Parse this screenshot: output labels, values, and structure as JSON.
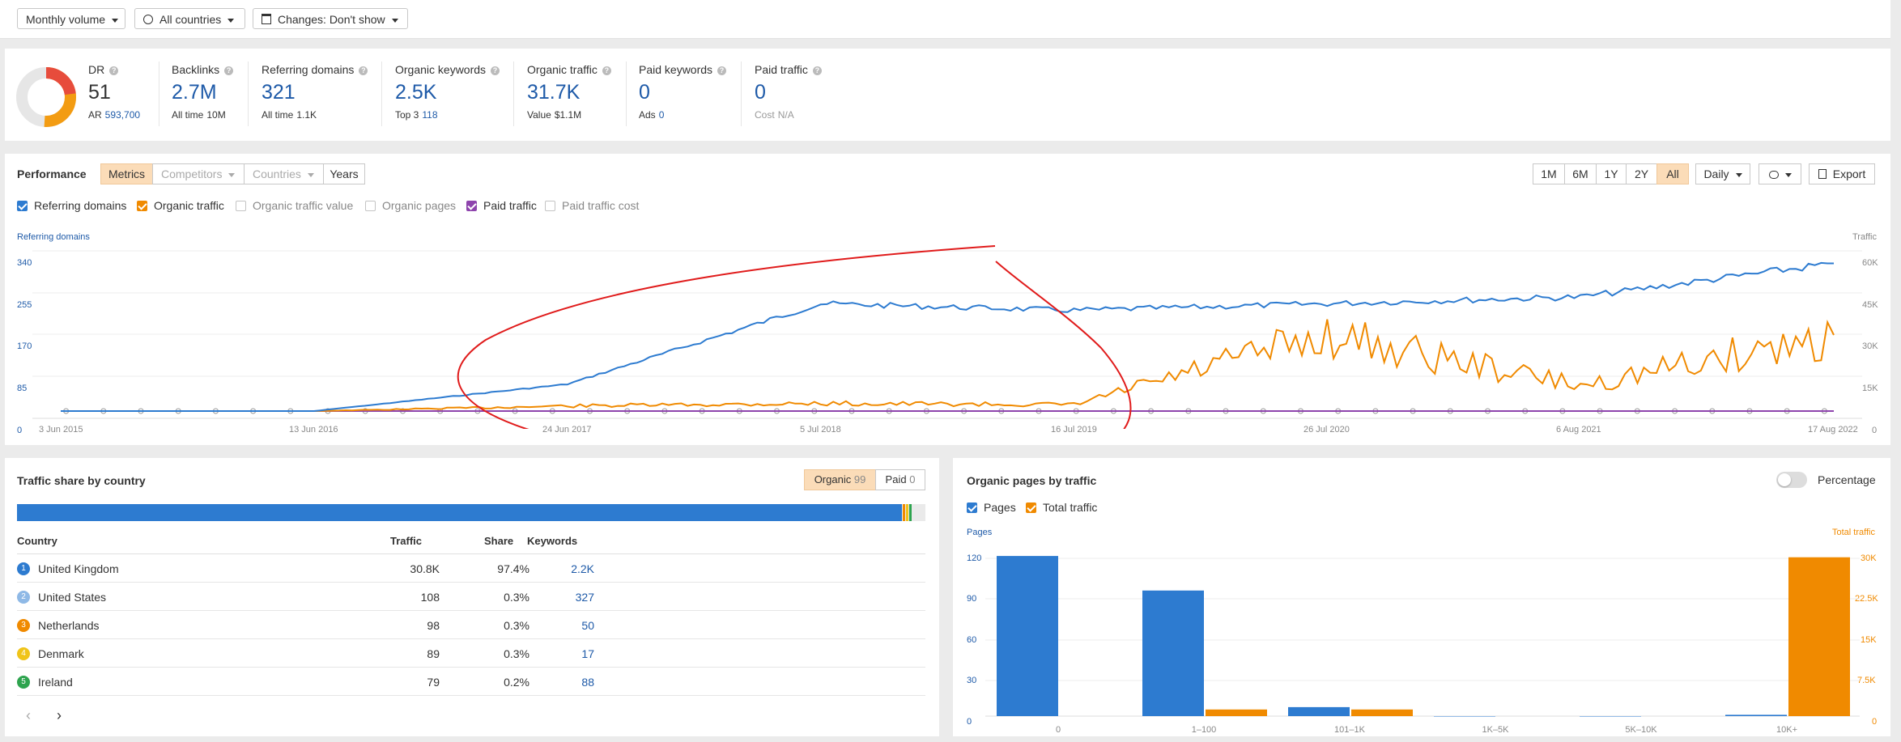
{
  "filters": {
    "volume": "Monthly volume",
    "countries": "All countries",
    "changes": "Changes: Don't show"
  },
  "metrics": {
    "dr": {
      "label": "DR",
      "value": "51",
      "sub_label": "AR",
      "sub_value": "593,700"
    },
    "backlinks": {
      "label": "Backlinks",
      "value": "2.7M",
      "sub_label": "All time",
      "sub_value": "10M"
    },
    "refdomains": {
      "label": "Referring domains",
      "value": "321",
      "sub_label": "All time",
      "sub_value": "1.1K"
    },
    "orgkw": {
      "label": "Organic keywords",
      "value": "2.5K",
      "sub_label": "Top 3",
      "sub_value": "118"
    },
    "orgtraffic": {
      "label": "Organic traffic",
      "value": "31.7K",
      "sub_label": "Value",
      "sub_value": "$1.1M"
    },
    "paidkw": {
      "label": "Paid keywords",
      "value": "0",
      "sub_label": "Ads",
      "sub_value": "0"
    },
    "paidtraffic": {
      "label": "Paid traffic",
      "value": "0",
      "sub_label": "Cost",
      "sub_value": "N/A"
    }
  },
  "performance": {
    "title": "Performance",
    "tabs": [
      "Metrics",
      "Competitors",
      "Countries",
      "Years"
    ],
    "ranges": [
      "1M",
      "6M",
      "1Y",
      "2Y",
      "All"
    ],
    "interval": "Daily",
    "export": "Export",
    "checkboxes": [
      {
        "label": "Referring domains",
        "checked": true,
        "color": "#2d7bd0"
      },
      {
        "label": "Organic traffic",
        "checked": true,
        "color": "#f08a00"
      },
      {
        "label": "Organic traffic value",
        "checked": false,
        "color": "#c4c4c4"
      },
      {
        "label": "Organic pages",
        "checked": false,
        "color": "#c4c4c4"
      },
      {
        "label": "Paid traffic",
        "checked": true,
        "color": "#8e44ad"
      },
      {
        "label": "Paid traffic cost",
        "checked": false,
        "color": "#c4c4c4"
      }
    ],
    "left_axis_title": "Referring domains",
    "right_axis_title": "Traffic",
    "left_ticks": [
      "340",
      "255",
      "170",
      "85",
      "0"
    ],
    "right_ticks": [
      "60K",
      "45K",
      "30K",
      "15K",
      "0"
    ],
    "x_ticks": [
      "3 Jun 2015",
      "13 Jun 2016",
      "24 Jun 2017",
      "5 Jul 2018",
      "16 Jul 2019",
      "26 Jul 2020",
      "6 Aug 2021",
      "17 Aug 2022"
    ]
  },
  "chart_data": [
    {
      "type": "line",
      "title": "Performance",
      "x": [
        "3 Jun 2015",
        "13 Jun 2016",
        "24 Jun 2017",
        "5 Jul 2018",
        "16 Jul 2019",
        "26 Jul 2020",
        "6 Aug 2021",
        "17 Aug 2022"
      ],
      "series": [
        {
          "name": "Referring domains",
          "axis": "left",
          "color": "#2d7bd0",
          "values": [
            0,
            0,
            60,
            240,
            225,
            240,
            255,
            330
          ]
        },
        {
          "name": "Organic traffic",
          "axis": "right",
          "color": "#f08a00",
          "values": [
            0,
            0,
            2000,
            3000,
            2500,
            30000,
            10000,
            30000
          ]
        },
        {
          "name": "Paid traffic",
          "axis": "right",
          "color": "#8e44ad",
          "values": [
            0,
            0,
            0,
            0,
            0,
            0,
            0,
            0
          ]
        }
      ],
      "ylim_left": [
        0,
        340
      ],
      "ylim_right": [
        0,
        60000
      ]
    },
    {
      "type": "bar",
      "title": "Organic pages by traffic",
      "categories": [
        "0",
        "1–100",
        "101–1K",
        "1K–5K",
        "5K–10K",
        "10K+"
      ],
      "series": [
        {
          "name": "Pages",
          "axis": "left",
          "color": "#2d7bd0",
          "values": [
            125,
            98,
            7,
            0,
            0,
            1
          ]
        },
        {
          "name": "Total traffic",
          "axis": "right",
          "color": "#f08a00",
          "values": [
            0,
            1300,
            1300,
            0,
            0,
            31000
          ]
        }
      ],
      "ylim_left": [
        0,
        120
      ],
      "ylim_right": [
        0,
        30000
      ]
    }
  ],
  "country_share": {
    "title": "Traffic share by country",
    "organic_label": "Organic",
    "organic_count": "99",
    "paid_label": "Paid",
    "paid_count": "0",
    "headers": {
      "country": "Country",
      "traffic": "Traffic",
      "share": "Share",
      "keywords": "Keywords"
    },
    "rows": [
      {
        "rank": "1",
        "country": "United Kingdom",
        "traffic": "30.8K",
        "share": "97.4%",
        "keywords": "2.2K",
        "color": "#2d7bd0"
      },
      {
        "rank": "2",
        "country": "United States",
        "traffic": "108",
        "share": "0.3%",
        "keywords": "327",
        "color": "#8fb9e6"
      },
      {
        "rank": "3",
        "country": "Netherlands",
        "traffic": "98",
        "share": "0.3%",
        "keywords": "50",
        "color": "#f08a00"
      },
      {
        "rank": "4",
        "country": "Denmark",
        "traffic": "89",
        "share": "0.3%",
        "keywords": "17",
        "color": "#f0c419"
      },
      {
        "rank": "5",
        "country": "Ireland",
        "traffic": "79",
        "share": "0.2%",
        "keywords": "88",
        "color": "#2ea44f"
      }
    ]
  },
  "pages_by_traffic": {
    "title": "Organic pages by traffic",
    "percentage_label": "Percentage",
    "pages_label": "Pages",
    "total_label": "Total traffic",
    "left_axis_title": "Pages",
    "right_axis_title": "Total traffic",
    "left_ticks": [
      "120",
      "90",
      "60",
      "30",
      "0"
    ],
    "right_ticks": [
      "30K",
      "22.5K",
      "15K",
      "7.5K",
      "0"
    ]
  }
}
